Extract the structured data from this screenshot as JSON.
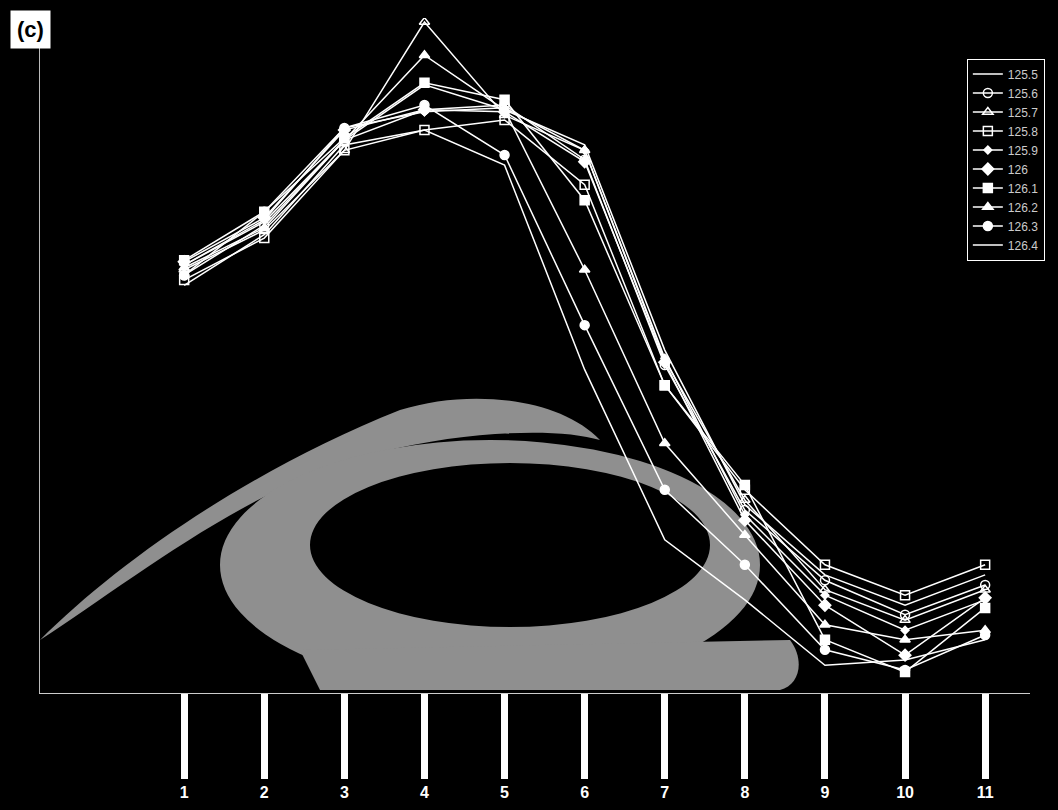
{
  "chart_data": {
    "type": "line",
    "title": "(c)",
    "categories": [
      "1",
      "2",
      "3",
      "4",
      "5",
      "6",
      "7",
      "8",
      "9",
      "10",
      "11"
    ],
    "ylim": [
      0,
      100
    ],
    "grid": false,
    "tick_labels": "x",
    "legend": "top right",
    "series": [
      {
        "name": "125.5",
        "color": "#ffffff",
        "marker": "none",
        "values": [
          63.4,
          69.8,
          81.9,
          90.1,
          86.4,
          81.2,
          50.8,
          27.9,
          17.5,
          13.0,
          17.5
        ]
      },
      {
        "name": "125.6",
        "color": "#ffffff",
        "marker": "circle-open",
        "values": [
          61.9,
          69.3,
          81.9,
          86.4,
          87.1,
          79.0,
          48.6,
          27.1,
          16.7,
          11.6,
          16.0
        ]
      },
      {
        "name": "125.7",
        "color": "#ffffff",
        "marker": "triangle-up-open",
        "values": [
          62.7,
          68.6,
          80.4,
          99.4,
          85.6,
          80.4,
          49.3,
          28.6,
          15.3,
          10.8,
          15.3
        ]
      },
      {
        "name": "125.8",
        "color": "#ffffff",
        "marker": "square-open",
        "values": [
          61.2,
          67.4,
          80.4,
          83.4,
          84.9,
          75.3,
          45.6,
          30.1,
          19.0,
          14.5,
          19.0
        ]
      },
      {
        "name": "125.9",
        "color": "#ffffff",
        "marker": "diamond-small",
        "values": [
          63.4,
          70.1,
          83.7,
          86.1,
          86.7,
          80.4,
          49.6,
          26.4,
          14.5,
          9.3,
          13.8
        ]
      },
      {
        "name": "126",
        "color": "#ffffff",
        "marker": "diamond",
        "values": [
          63.9,
          70.4,
          83.4,
          86.4,
          86.1,
          78.7,
          49.0,
          25.6,
          13.0,
          5.6,
          14.1
        ]
      },
      {
        "name": "126.1",
        "color": "#ffffff",
        "marker": "square",
        "values": [
          64.1,
          71.3,
          82.2,
          90.4,
          87.9,
          73.0,
          45.6,
          30.8,
          7.9,
          3.1,
          12.6
        ]
      },
      {
        "name": "126.2",
        "color": "#ffffff",
        "marker": "triangle-up",
        "values": [
          63.0,
          68.9,
          81.9,
          94.5,
          86.4,
          62.7,
          37.0,
          23.4,
          10.1,
          7.9,
          9.3
        ]
      },
      {
        "name": "126.3",
        "color": "#ffffff",
        "marker": "circle",
        "values": [
          61.9,
          71.3,
          83.7,
          87.1,
          79.7,
          54.5,
          30.1,
          19.0,
          6.4,
          3.4,
          8.6
        ]
      },
      {
        "name": "126.4",
        "color": "#ffffff",
        "marker": "none",
        "values": [
          60.4,
          67.9,
          81.2,
          83.4,
          78.2,
          47.9,
          22.7,
          13.8,
          4.1,
          4.9,
          7.9
        ]
      }
    ]
  }
}
